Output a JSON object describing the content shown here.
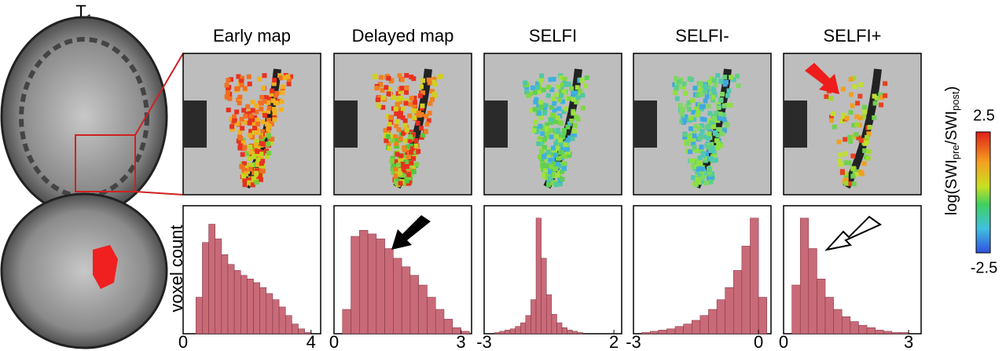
{
  "figure": {
    "t1_label": {
      "base": "T",
      "sub": "1"
    },
    "ylabel": "voxel count",
    "colorbar": {
      "label_parts": [
        "log(SWI",
        "pre",
        "/SWI",
        "post",
        ")"
      ],
      "ylim": [
        -2.5,
        2.5
      ],
      "yticks": [
        2.5,
        -2.5
      ]
    }
  },
  "chart_data": [
    {
      "type": "histogram",
      "title": "Early map",
      "xlim": [
        0,
        4.3
      ],
      "xticks": [
        0,
        4
      ],
      "ylim": [
        0,
        100
      ],
      "bins": [
        0.4,
        0.6,
        0.8,
        1.0,
        1.2,
        1.4,
        1.6,
        1.8,
        2.0,
        2.2,
        2.4,
        2.6,
        2.8,
        3.0,
        3.2,
        3.4,
        3.6,
        3.8,
        4.0
      ],
      "counts": [
        30,
        75,
        90,
        78,
        65,
        57,
        52,
        48,
        45,
        42,
        38,
        33,
        28,
        22,
        15,
        8,
        4,
        1
      ],
      "color": "#c96a78"
    },
    {
      "type": "histogram",
      "title": "Delayed map",
      "xlim": [
        0,
        3.25
      ],
      "xticks": [
        0,
        3
      ],
      "ylim": [
        0,
        100
      ],
      "bins": [
        0.2,
        0.4,
        0.6,
        0.8,
        1.0,
        1.2,
        1.4,
        1.6,
        1.8,
        2.0,
        2.2,
        2.4,
        2.6,
        2.8,
        3.0,
        3.2
      ],
      "counts": [
        20,
        80,
        85,
        82,
        78,
        70,
        62,
        55,
        48,
        40,
        30,
        20,
        12,
        5,
        2
      ],
      "color": "#c96a78"
    },
    {
      "type": "histogram",
      "title": "SELFI",
      "xlim": [
        -3,
        2.3
      ],
      "xticks": [
        -3,
        2
      ],
      "ylim": [
        0,
        100
      ],
      "bins": [
        -2.6,
        -2.4,
        -2.2,
        -2.0,
        -1.8,
        -1.6,
        -1.4,
        -1.2,
        -1.0,
        -0.8,
        -0.6,
        -0.4,
        -0.2,
        0.0,
        0.2,
        0.4,
        0.6,
        0.8
      ],
      "counts": [
        1,
        2,
        3,
        4,
        6,
        9,
        15,
        28,
        95,
        62,
        32,
        16,
        9,
        5,
        3,
        2,
        1
      ],
      "color": "#c96a78"
    },
    {
      "type": "histogram",
      "title": "SELFI-",
      "xlim": [
        -3,
        0.3
      ],
      "xticks": [
        -3,
        0
      ],
      "ylim": [
        0,
        100
      ],
      "bins": [
        -2.8,
        -2.6,
        -2.4,
        -2.2,
        -2.0,
        -1.8,
        -1.6,
        -1.4,
        -1.2,
        -1.0,
        -0.8,
        -0.6,
        -0.4,
        -0.2,
        0.0,
        0.2
      ],
      "counts": [
        1,
        2,
        3,
        4,
        6,
        8,
        11,
        15,
        20,
        28,
        38,
        52,
        72,
        95,
        30
      ],
      "color": "#c96a78"
    },
    {
      "type": "histogram",
      "title": "SELFI+",
      "xlim": [
        0,
        3.3
      ],
      "xticks": [
        0,
        3
      ],
      "ylim": [
        0,
        100
      ],
      "bins": [
        0.2,
        0.4,
        0.6,
        0.8,
        1.0,
        1.2,
        1.4,
        1.6,
        1.8,
        2.0,
        2.2,
        2.4,
        2.6,
        2.8,
        3.0,
        3.2
      ],
      "counts": [
        40,
        95,
        70,
        45,
        30,
        20,
        14,
        10,
        7,
        5,
        3,
        2,
        1,
        1,
        0
      ],
      "color": "#c96a78"
    }
  ]
}
